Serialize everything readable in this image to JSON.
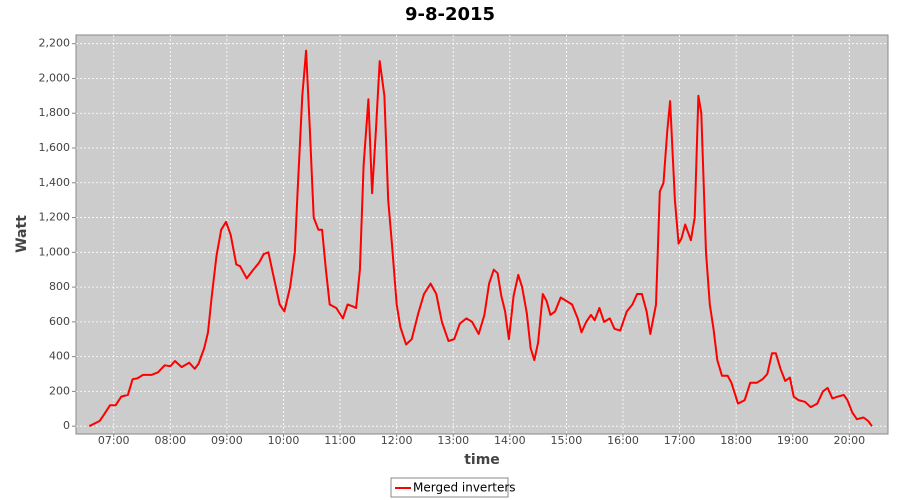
{
  "chart_data": {
    "type": "line",
    "title": "9-8-2015",
    "x_label": "time",
    "y_label": "Watt",
    "x": [
      "06:34",
      "06:45",
      "06:49",
      "06:56",
      "07:02",
      "07:08",
      "07:15",
      "07:20",
      "07:25",
      "07:31",
      "07:40",
      "07:47",
      "07:54",
      "08:00",
      "08:05",
      "08:12",
      "08:20",
      "08:26",
      "08:30",
      "08:36",
      "08:40",
      "08:44",
      "08:49",
      "08:54",
      "08:59",
      "09:04",
      "09:10",
      "09:14",
      "09:21",
      "09:28",
      "09:34",
      "09:39",
      "09:44",
      "09:50",
      "09:56",
      "10:01",
      "10:07",
      "10:12",
      "10:15",
      "10:20",
      "10:24",
      "10:28",
      "10:32",
      "10:37",
      "10:41",
      "10:45",
      "10:49",
      "10:56",
      "11:03",
      "11:08",
      "11:13",
      "11:17",
      "11:21",
      "11:25",
      "11:30",
      "11:34",
      "11:38",
      "11:42",
      "11:47",
      "11:51",
      "11:55",
      "12:00",
      "12:04",
      "12:10",
      "12:16",
      "12:23",
      "12:29",
      "12:36",
      "12:42",
      "12:48",
      "12:55",
      "13:01",
      "13:07",
      "13:14",
      "13:20",
      "13:27",
      "13:33",
      "13:38",
      "13:43",
      "13:47",
      "13:51",
      "13:55",
      "13:59",
      "14:04",
      "14:09",
      "14:13",
      "14:18",
      "14:22",
      "14:26",
      "14:30",
      "14:35",
      "14:39",
      "14:43",
      "14:48",
      "14:54",
      "15:00",
      "15:06",
      "15:12",
      "15:16",
      "15:21",
      "15:26",
      "15:30",
      "15:35",
      "15:40",
      "15:46",
      "15:51",
      "15:57",
      "16:04",
      "16:10",
      "16:15",
      "16:20",
      "16:25",
      "16:29",
      "16:35",
      "16:39",
      "16:43",
      "16:47",
      "16:50",
      "16:55",
      "16:59",
      "17:02",
      "17:06",
      "17:12",
      "17:16",
      "17:20",
      "17:23",
      "17:28",
      "17:32",
      "17:36",
      "17:40",
      "17:45",
      "17:51",
      "17:55",
      "18:02",
      "18:09",
      "18:15",
      "18:22",
      "18:28",
      "18:33",
      "18:38",
      "18:42",
      "18:47",
      "18:52",
      "18:57",
      "19:01",
      "19:06",
      "19:13",
      "19:19",
      "19:26",
      "19:32",
      "19:37",
      "19:42",
      "19:48",
      "19:54",
      "19:58",
      "20:03",
      "20:08",
      "20:15",
      "20:20",
      "20:24"
    ],
    "series": [
      {
        "name": "Merged inverters",
        "color": "#ff0000",
        "values": [
          0,
          30,
          60,
          120,
          120,
          170,
          180,
          270,
          275,
          295,
          295,
          310,
          350,
          345,
          375,
          340,
          365,
          330,
          360,
          450,
          540,
          750,
          980,
          1130,
          1175,
          1100,
          930,
          920,
          850,
          900,
          940,
          990,
          1000,
          850,
          700,
          660,
          800,
          1000,
          1350,
          1900,
          2160,
          1700,
          1200,
          1130,
          1130,
          900,
          700,
          680,
          620,
          700,
          690,
          680,
          900,
          1500,
          1880,
          1340,
          1700,
          2100,
          1900,
          1300,
          1050,
          700,
          570,
          470,
          500,
          650,
          760,
          820,
          760,
          600,
          490,
          500,
          590,
          620,
          600,
          530,
          640,
          820,
          900,
          880,
          750,
          660,
          500,
          750,
          870,
          800,
          650,
          450,
          380,
          480,
          760,
          720,
          640,
          660,
          740,
          720,
          700,
          620,
          540,
          600,
          640,
          610,
          680,
          600,
          620,
          560,
          550,
          660,
          700,
          760,
          760,
          660,
          530,
          700,
          1350,
          1400,
          1700,
          1870,
          1300,
          1050,
          1080,
          1160,
          1070,
          1200,
          1900,
          1800,
          1000,
          700,
          560,
          380,
          290,
          290,
          250,
          130,
          150,
          250,
          250,
          270,
          300,
          420,
          420,
          330,
          260,
          280,
          170,
          150,
          140,
          110,
          130,
          200,
          220,
          160,
          170,
          180,
          150,
          80,
          40,
          50,
          30,
          0
        ]
      }
    ],
    "xlim": [
      "06:20",
      "20:41"
    ],
    "xticks": [
      "07:00",
      "08:00",
      "09:00",
      "10:00",
      "11:00",
      "12:00",
      "13:00",
      "14:00",
      "15:00",
      "16:00",
      "17:00",
      "18:00",
      "19:00",
      "20:00"
    ],
    "ylim": [
      -45,
      2250
    ],
    "yticks": [
      0,
      200,
      400,
      600,
      800,
      {
        "value": 1000,
        "label": "1,000"
      },
      {
        "value": 1200,
        "label": "1,200"
      },
      {
        "value": 1400,
        "label": "1,400"
      },
      {
        "value": 1600,
        "label": "1,600"
      },
      {
        "value": 1800,
        "label": "1,800"
      },
      {
        "value": 2000,
        "label": "2,000"
      },
      {
        "value": 2200,
        "label": "2,200"
      }
    ],
    "grid": true,
    "legend": "bottom"
  }
}
